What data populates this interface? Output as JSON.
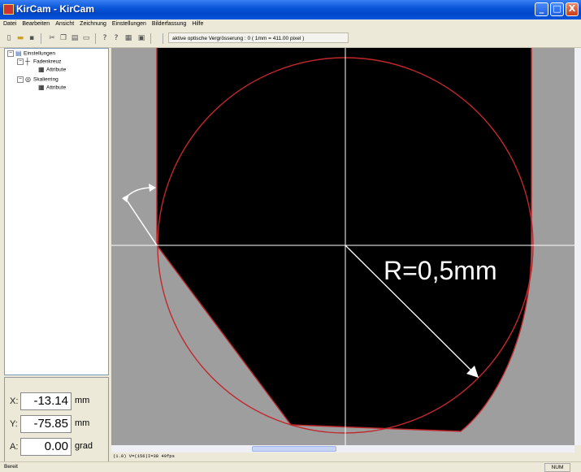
{
  "window": {
    "title": "KirCam - KirCam",
    "minimize": "_",
    "maximize": "□",
    "close": "X"
  },
  "menu": [
    "Datei",
    "Bearbeiten",
    "Ansicht",
    "Zeichnung",
    "Einstellungen",
    "Bilderfassung",
    "Hilfe"
  ],
  "toolbar": {
    "magnification": "aktive optische Vergrösserung : 0 ( 1mm = 411.00 pixel )"
  },
  "tree": {
    "root": "Einstellungen",
    "crosshair": "Fadenkreuz",
    "crosshair_attr": "Attribute",
    "scale": "Skalierring",
    "scale_attr": "Attribute"
  },
  "coords": {
    "x_label": "X:",
    "x_value": "-13.14",
    "x_unit": "mm",
    "y_label": "Y:",
    "y_value": "-75.85",
    "y_unit": "mm",
    "a_label": "A:",
    "a_value": "0.00",
    "a_unit": "grad"
  },
  "view": {
    "radius_label": "R=0,5mm",
    "colors": {
      "outline": "#c0282c",
      "background": "#9e9e9e",
      "part": "#000000",
      "crosshair": "#ffffff"
    }
  },
  "status": {
    "info": "(1.0) V=(156)I=38 49fps",
    "text": "Bereit",
    "num": "NUM"
  }
}
